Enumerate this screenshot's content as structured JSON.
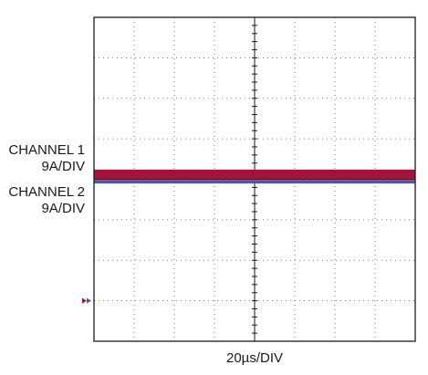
{
  "chart_data": {
    "type": "line",
    "title": "",
    "xlabel": "20µs/DIV",
    "ylabel": "",
    "grid": true,
    "x_divisions": 8,
    "y_divisions": 8,
    "x_range_div": [
      0,
      8
    ],
    "y_range_div": [
      -4,
      4
    ],
    "channels": [
      {
        "name": "CHANNEL 1",
        "scale": "9A/DIV",
        "ground_marker_div": -3.0
      },
      {
        "name": "CHANNEL 2",
        "scale": "9A/DIV",
        "ground_marker_div": -3.0
      }
    ],
    "series": [
      {
        "name": "CHANNEL 1",
        "color": "#a3123a",
        "x": [
          0,
          8
        ],
        "y_div": [
          0.12,
          0.12
        ],
        "trace_width_div": 0.24
      },
      {
        "name": "CHANNEL 2",
        "color": "#4a5aa8",
        "x": [
          0,
          8
        ],
        "y_div": [
          -0.06,
          -0.06
        ],
        "trace_width_div": 0.09
      }
    ]
  },
  "labels": {
    "ch1_name": "CHANNEL 1",
    "ch1_scale": "9A/DIV",
    "ch2_name": "CHANNEL 2",
    "ch2_scale": "9A/DIV",
    "time_scale": "20µs/DIV"
  },
  "colors": {
    "ch1": "#a3123a",
    "ch2": "#4a5aa8",
    "grid": "#555555",
    "frame": "#1a1a1a"
  }
}
